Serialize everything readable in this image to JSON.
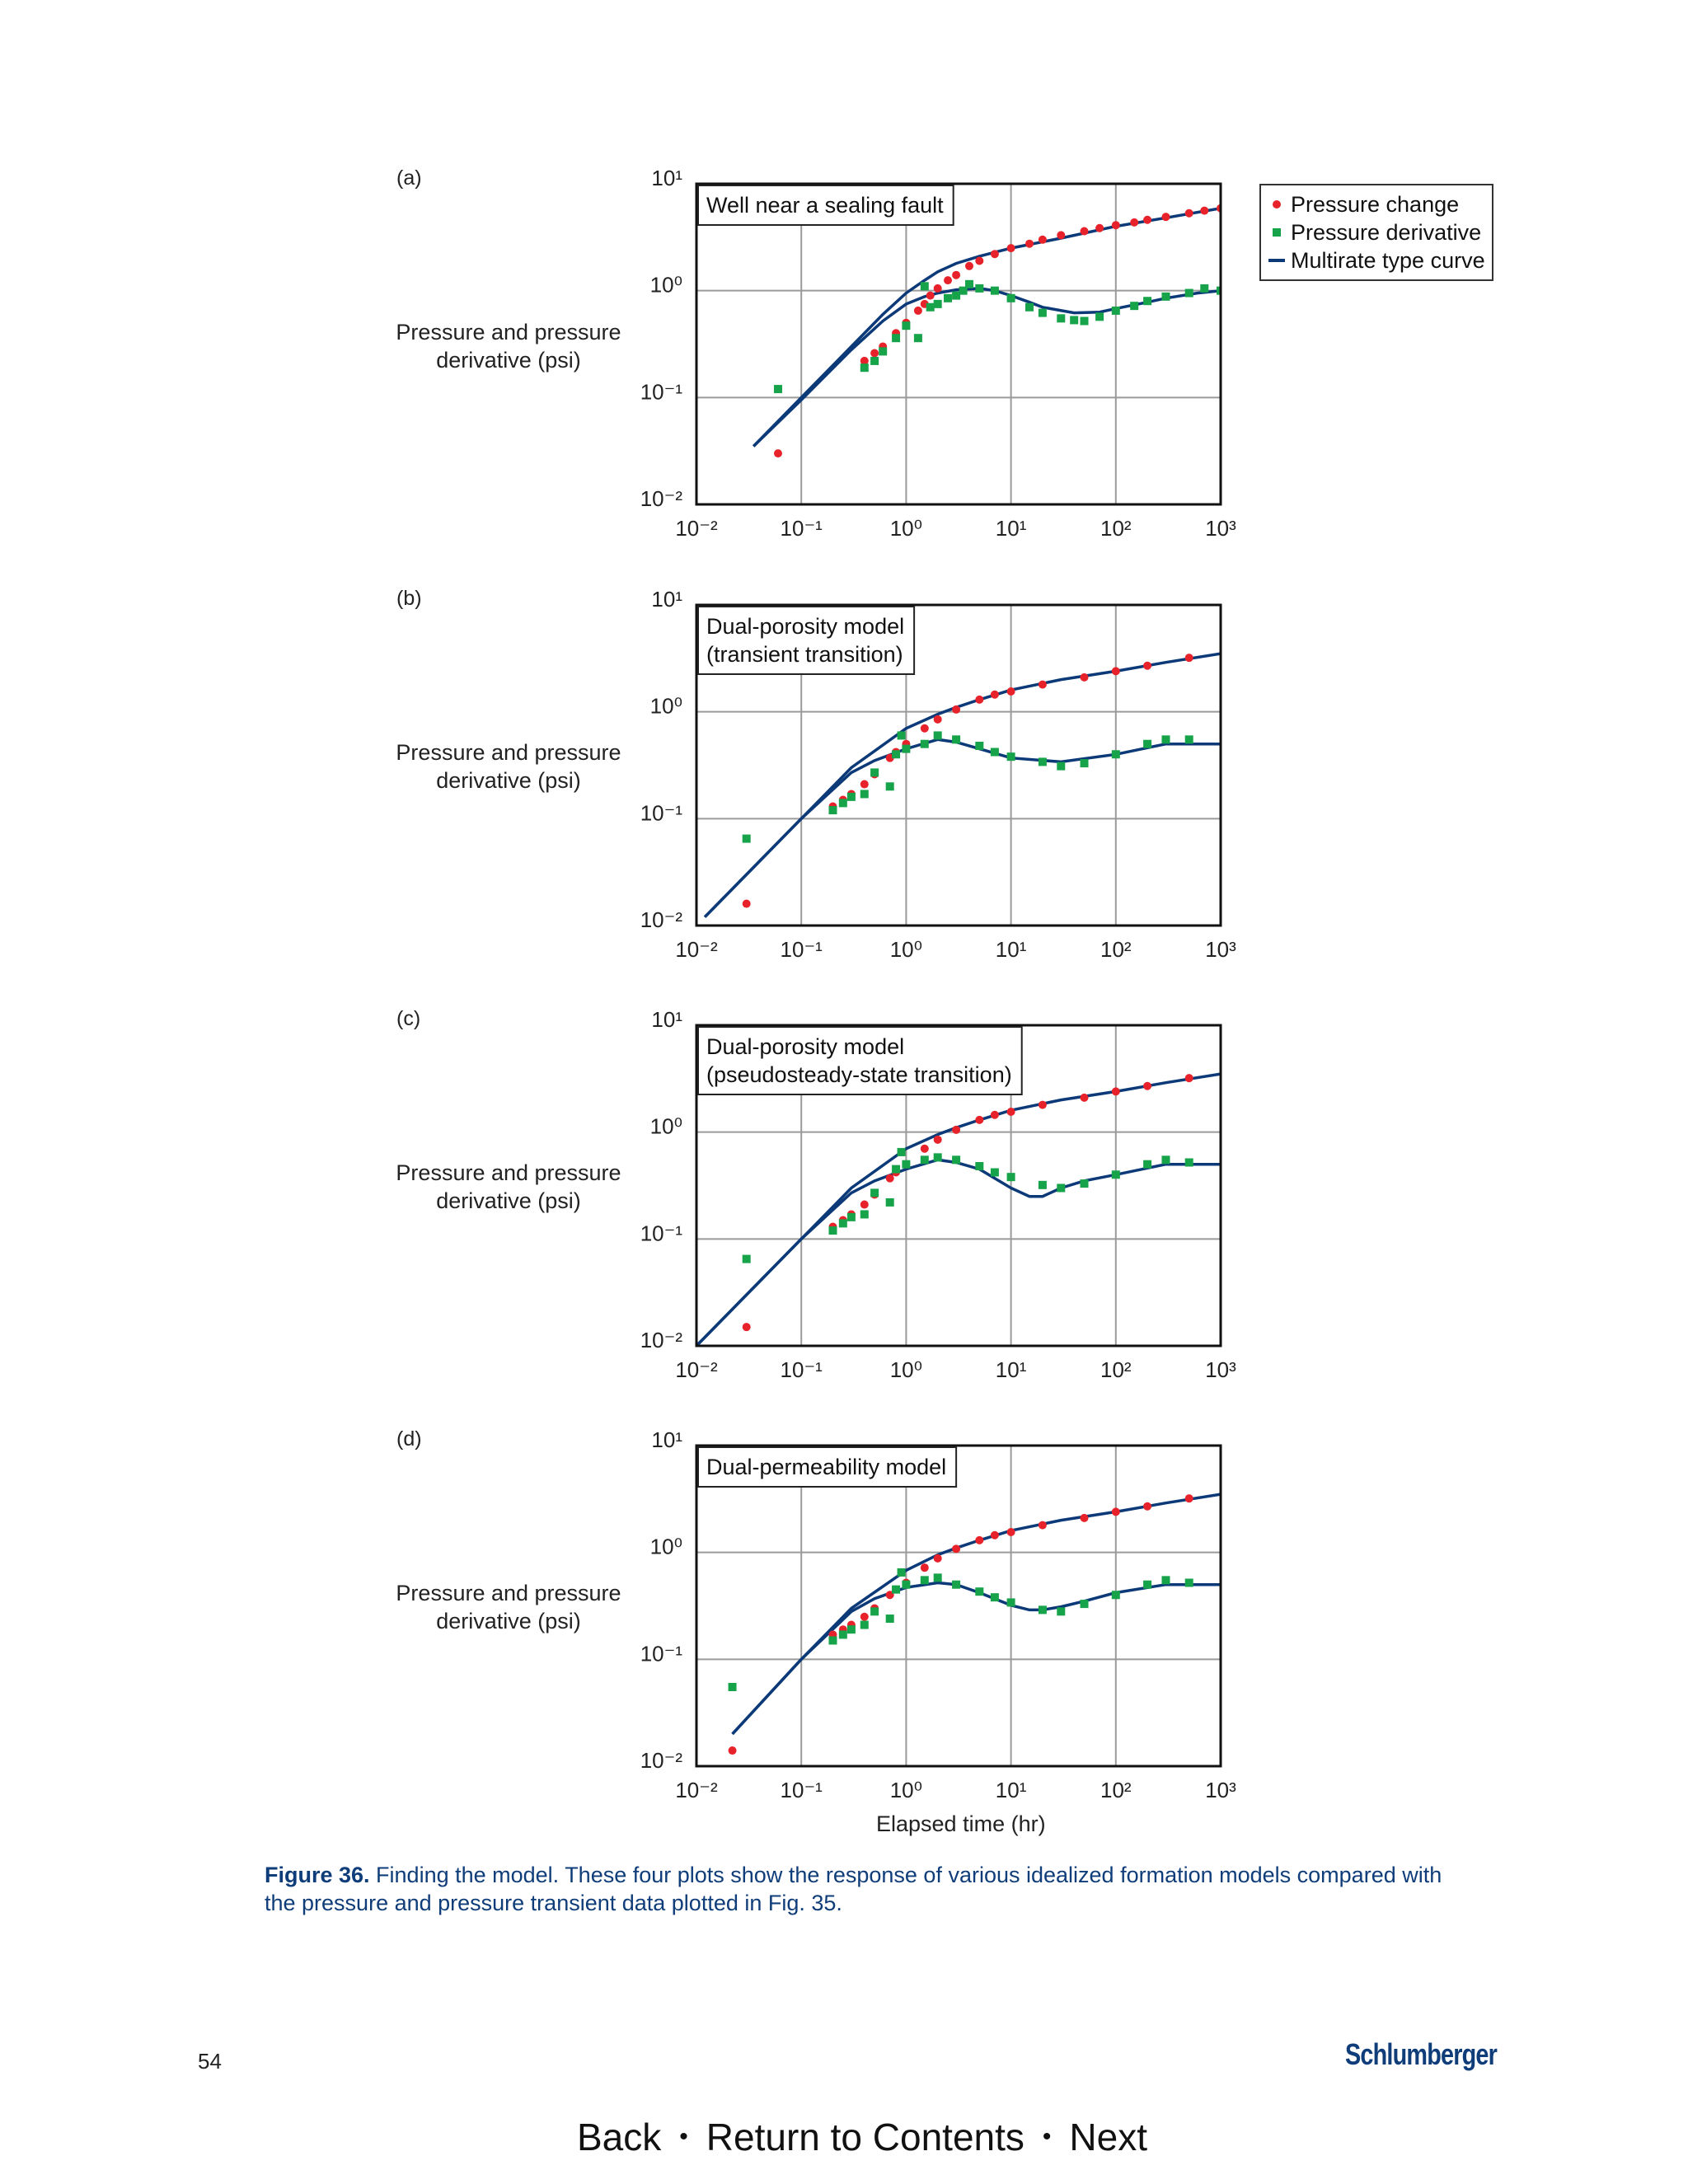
{
  "figure": {
    "ylabel_lines": [
      "Pressure and pressure",
      "derivative (psi)"
    ],
    "xlabel": "Elapsed time (hr)",
    "x_ticks": [
      "10⁻²",
      "10⁻¹",
      "10⁰",
      "10¹",
      "10²",
      "10³"
    ],
    "y_ticks": [
      "10⁻²",
      "10⁻¹",
      "10⁰",
      "10¹"
    ],
    "legend": [
      {
        "label": "Pressure change",
        "color": "#e8222a",
        "marker": "circle"
      },
      {
        "label": "Pressure derivative",
        "color": "#16a34a",
        "marker": "square"
      },
      {
        "label": "Multirate type curve",
        "color": "#0c3a78",
        "marker": "line"
      }
    ],
    "caption_bold": "Figure 36.",
    "caption_text": " Finding the model. These four plots show the response of various idealized formation models compared with the pressure and pressure transient data plotted in Fig. 35."
  },
  "footer": {
    "page_number": "54",
    "logo": "Schlumberger",
    "nav": {
      "back": "Back",
      "contents": "Return to Contents",
      "next": "Next",
      "separator": "•"
    }
  },
  "chart_data": [
    {
      "type": "scatter",
      "panel": "(a)",
      "title_lines": [
        "Well near a sealing fault"
      ],
      "xscale": "log",
      "yscale": "log",
      "xlim": [
        0.01,
        1000
      ],
      "ylim": [
        0.01,
        10
      ],
      "grid": true,
      "legend_position": "right",
      "series": [
        {
          "name": "Pressure change",
          "marker": "circle",
          "x": [
            0.06,
            0.4,
            0.5,
            0.6,
            0.8,
            1.0,
            1.3,
            1.5,
            1.7,
            2,
            2.5,
            3,
            4,
            5,
            7,
            10,
            15,
            20,
            30,
            50,
            70,
            100,
            150,
            200,
            300,
            500,
            700,
            1000
          ],
          "y": [
            0.03,
            0.22,
            0.26,
            0.3,
            0.4,
            0.5,
            0.65,
            0.75,
            0.9,
            1.05,
            1.25,
            1.4,
            1.7,
            1.9,
            2.2,
            2.5,
            2.75,
            3.0,
            3.3,
            3.6,
            3.85,
            4.1,
            4.35,
            4.6,
            4.9,
            5.3,
            5.6,
            5.9
          ]
        },
        {
          "name": "Pressure derivative",
          "marker": "square",
          "x": [
            0.06,
            0.4,
            0.5,
            0.6,
            0.8,
            1.0,
            1.3,
            1.5,
            1.7,
            2,
            2.5,
            3,
            3.5,
            4,
            5,
            7,
            10,
            15,
            20,
            30,
            40,
            50,
            70,
            100,
            150,
            200,
            300,
            500,
            700,
            1000
          ],
          "y": [
            0.12,
            0.19,
            0.22,
            0.27,
            0.36,
            0.47,
            0.36,
            1.1,
            0.7,
            0.75,
            0.85,
            0.9,
            1.0,
            1.15,
            1.05,
            1.0,
            0.85,
            0.7,
            0.62,
            0.55,
            0.53,
            0.52,
            0.57,
            0.65,
            0.72,
            0.8,
            0.88,
            0.95,
            1.05,
            1.0
          ]
        },
        {
          "name": "Multirate type curve",
          "marker": "line",
          "x": [
            0.035,
            0.1,
            0.3,
            0.6,
            1,
            1.5,
            2,
            3,
            5,
            10,
            30,
            100,
            300,
            1000
          ],
          "y": [
            0.035,
            0.1,
            0.3,
            0.6,
            0.95,
            1.25,
            1.5,
            1.8,
            2.1,
            2.5,
            3.1,
            4.0,
            4.8,
            5.9
          ]
        },
        {
          "name": "Multirate type curve",
          "marker": "line",
          "x": [
            0.035,
            0.1,
            0.3,
            0.6,
            1,
            1.5,
            2,
            3,
            5,
            7,
            10,
            15,
            20,
            40,
            70,
            100,
            200,
            300,
            600,
            1000
          ],
          "y": [
            0.035,
            0.095,
            0.28,
            0.52,
            0.75,
            0.88,
            0.95,
            1.02,
            1.05,
            1.0,
            0.9,
            0.78,
            0.7,
            0.62,
            0.63,
            0.68,
            0.78,
            0.85,
            0.95,
            1.0
          ]
        }
      ]
    },
    {
      "type": "scatter",
      "panel": "(b)",
      "title_lines": [
        "Dual-porosity model",
        "(transient transition)"
      ],
      "xscale": "log",
      "yscale": "log",
      "xlim": [
        0.01,
        1000
      ],
      "ylim": [
        0.01,
        10
      ],
      "grid": true,
      "series": [
        {
          "name": "Pressure change",
          "marker": "circle",
          "x": [
            0.03,
            0.2,
            0.25,
            0.3,
            0.4,
            0.5,
            0.7,
            0.8,
            1,
            1.5,
            2,
            3,
            5,
            7,
            10,
            20,
            50,
            100,
            200,
            500
          ],
          "y": [
            0.016,
            0.13,
            0.15,
            0.17,
            0.21,
            0.26,
            0.37,
            0.42,
            0.5,
            0.7,
            0.85,
            1.05,
            1.3,
            1.45,
            1.55,
            1.8,
            2.1,
            2.4,
            2.7,
            3.2
          ]
        },
        {
          "name": "Pressure derivative",
          "marker": "square",
          "x": [
            0.03,
            0.2,
            0.25,
            0.3,
            0.4,
            0.5,
            0.7,
            0.8,
            0.9,
            1,
            1.5,
            2,
            3,
            5,
            7,
            10,
            20,
            30,
            50,
            100,
            200,
            300,
            500
          ],
          "y": [
            0.065,
            0.12,
            0.14,
            0.16,
            0.17,
            0.27,
            0.2,
            0.4,
            0.6,
            0.45,
            0.5,
            0.6,
            0.55,
            0.48,
            0.42,
            0.38,
            0.34,
            0.31,
            0.33,
            0.4,
            0.5,
            0.55,
            0.55
          ]
        },
        {
          "name": "Multirate type curve",
          "marker": "line",
          "x": [
            0.012,
            0.1,
            0.3,
            1,
            2,
            3,
            5,
            10,
            30,
            100,
            300,
            1000
          ],
          "y": [
            0.012,
            0.1,
            0.3,
            0.7,
            0.95,
            1.1,
            1.3,
            1.6,
            2.0,
            2.4,
            2.9,
            3.5
          ]
        },
        {
          "name": "Multirate type curve",
          "marker": "line",
          "x": [
            0.012,
            0.1,
            0.3,
            0.5,
            1,
            2,
            3,
            5,
            10,
            30,
            100,
            300,
            1000
          ],
          "y": [
            0.012,
            0.1,
            0.27,
            0.35,
            0.45,
            0.55,
            0.52,
            0.45,
            0.37,
            0.34,
            0.4,
            0.5,
            0.5
          ]
        }
      ]
    },
    {
      "type": "scatter",
      "panel": "(c)",
      "title_lines": [
        "Dual-porosity model",
        "(pseudosteady-state transition)"
      ],
      "xscale": "log",
      "yscale": "log",
      "xlim": [
        0.01,
        1000
      ],
      "ylim": [
        0.01,
        10
      ],
      "grid": true,
      "series": [
        {
          "name": "Pressure change",
          "marker": "circle",
          "x": [
            0.03,
            0.2,
            0.25,
            0.3,
            0.4,
            0.5,
            0.7,
            0.8,
            1,
            1.5,
            2,
            3,
            5,
            7,
            10,
            20,
            50,
            100,
            200,
            500
          ],
          "y": [
            0.015,
            0.13,
            0.15,
            0.17,
            0.21,
            0.26,
            0.37,
            0.42,
            0.5,
            0.7,
            0.85,
            1.05,
            1.3,
            1.45,
            1.55,
            1.8,
            2.1,
            2.4,
            2.7,
            3.2
          ]
        },
        {
          "name": "Pressure derivative",
          "marker": "square",
          "x": [
            0.03,
            0.2,
            0.25,
            0.3,
            0.4,
            0.5,
            0.7,
            0.8,
            0.9,
            1,
            1.5,
            2,
            3,
            5,
            7,
            10,
            20,
            30,
            50,
            100,
            200,
            300,
            500
          ],
          "y": [
            0.065,
            0.12,
            0.14,
            0.16,
            0.17,
            0.27,
            0.22,
            0.45,
            0.65,
            0.5,
            0.55,
            0.58,
            0.55,
            0.48,
            0.42,
            0.38,
            0.32,
            0.3,
            0.33,
            0.4,
            0.5,
            0.55,
            0.52
          ]
        },
        {
          "name": "Multirate type curve",
          "marker": "line",
          "x": [
            0.01,
            0.1,
            0.3,
            1,
            2,
            3,
            5,
            10,
            30,
            100,
            300,
            1000
          ],
          "y": [
            0.01,
            0.1,
            0.3,
            0.7,
            0.95,
            1.1,
            1.3,
            1.6,
            2.0,
            2.4,
            2.9,
            3.5
          ]
        },
        {
          "name": "Multirate type curve",
          "marker": "line",
          "x": [
            0.01,
            0.1,
            0.3,
            0.5,
            1,
            2,
            3,
            5,
            10,
            15,
            20,
            30,
            50,
            100,
            300,
            1000
          ],
          "y": [
            0.01,
            0.1,
            0.27,
            0.35,
            0.45,
            0.55,
            0.52,
            0.45,
            0.3,
            0.25,
            0.25,
            0.3,
            0.35,
            0.4,
            0.5,
            0.5
          ]
        }
      ]
    },
    {
      "type": "scatter",
      "panel": "(d)",
      "title_lines": [
        "Dual-permeability model"
      ],
      "xscale": "log",
      "yscale": "log",
      "xlim": [
        0.01,
        1000
      ],
      "ylim": [
        0.01,
        10
      ],
      "grid": true,
      "series": [
        {
          "name": "Pressure change",
          "marker": "circle",
          "x": [
            0.022,
            0.2,
            0.25,
            0.3,
            0.4,
            0.5,
            0.7,
            0.8,
            1,
            1.5,
            2,
            3,
            5,
            7,
            10,
            20,
            50,
            100,
            200,
            500
          ],
          "y": [
            0.014,
            0.17,
            0.19,
            0.21,
            0.25,
            0.3,
            0.4,
            0.45,
            0.52,
            0.72,
            0.88,
            1.08,
            1.3,
            1.45,
            1.55,
            1.8,
            2.1,
            2.4,
            2.7,
            3.2
          ]
        },
        {
          "name": "Pressure derivative",
          "marker": "square",
          "x": [
            0.022,
            0.2,
            0.25,
            0.3,
            0.4,
            0.5,
            0.7,
            0.8,
            0.9,
            1,
            1.5,
            2,
            3,
            5,
            7,
            10,
            20,
            30,
            50,
            100,
            200,
            300,
            500
          ],
          "y": [
            0.055,
            0.15,
            0.17,
            0.19,
            0.21,
            0.28,
            0.24,
            0.45,
            0.65,
            0.5,
            0.55,
            0.58,
            0.5,
            0.43,
            0.38,
            0.34,
            0.29,
            0.28,
            0.33,
            0.4,
            0.5,
            0.55,
            0.52
          ]
        },
        {
          "name": "Multirate type curve",
          "marker": "line",
          "x": [
            0.022,
            0.1,
            0.3,
            1,
            2,
            3,
            5,
            10,
            30,
            100,
            300,
            1000
          ],
          "y": [
            0.02,
            0.1,
            0.3,
            0.68,
            0.95,
            1.1,
            1.3,
            1.6,
            2.0,
            2.4,
            2.9,
            3.5
          ]
        },
        {
          "name": "Multirate type curve",
          "marker": "line",
          "x": [
            0.022,
            0.1,
            0.3,
            0.5,
            1,
            2,
            3,
            5,
            10,
            15,
            20,
            30,
            50,
            100,
            300,
            1000
          ],
          "y": [
            0.02,
            0.1,
            0.28,
            0.37,
            0.47,
            0.52,
            0.5,
            0.42,
            0.32,
            0.29,
            0.29,
            0.31,
            0.35,
            0.42,
            0.5,
            0.5
          ]
        }
      ]
    }
  ]
}
